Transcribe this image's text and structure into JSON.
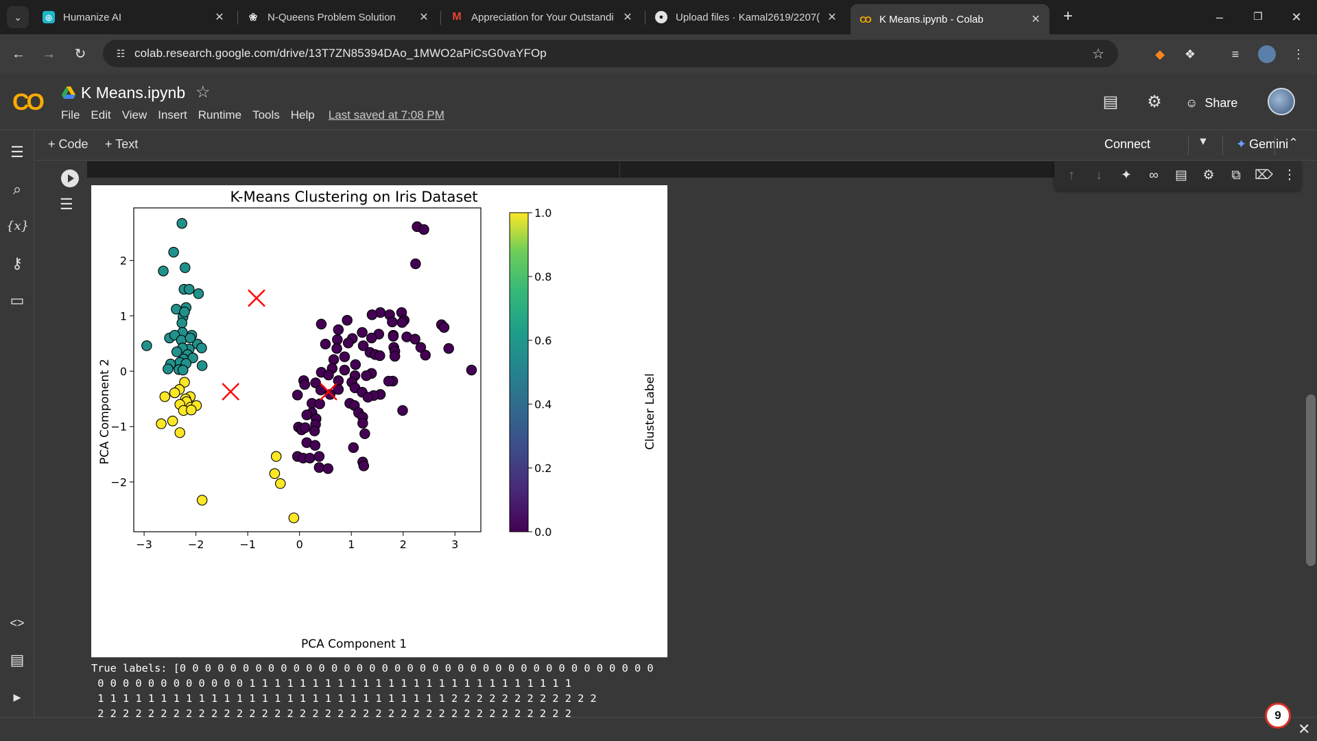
{
  "browser": {
    "tabs": [
      {
        "title": "Humanize AI",
        "icon": "humanize-ai-icon",
        "color": "#1fb6c9"
      },
      {
        "title": "N-Queens Problem Solution",
        "icon": "openai-icon",
        "color": "#e3e3e3"
      },
      {
        "title": "Appreciation for Your Outstandi",
        "icon": "gmail-icon",
        "color": "#ea4335"
      },
      {
        "title": "Upload files · Kamal2619/2207(",
        "icon": "github-icon",
        "color": "#e3e3e3"
      },
      {
        "title": "K Means.ipynb - Colab",
        "icon": "colab-icon",
        "color": "#f9ab00"
      }
    ],
    "url": "colab.research.google.com/drive/13T7ZN85394DAo_1MWO2aPiCsG0vaYFOp"
  },
  "colab": {
    "logo": "CO",
    "notebook_title": "K Means.ipynb",
    "menu": [
      "File",
      "Edit",
      "View",
      "Insert",
      "Runtime",
      "Tools",
      "Help"
    ],
    "last_saved": "Last saved at 7:08 PM",
    "share_label": "Share",
    "toolbar": {
      "code_label": "Code",
      "text_label": "Text",
      "connect_label": "Connect",
      "gemini_label": "Gemini"
    }
  },
  "output": {
    "stdout": [
      "True labels: [0 0 0 0 0 0 0 0 0 0 0 0 0 0 0 0 0 0 0 0 0 0 0 0 0 0 0 0 0 0 0 0 0 0 0 0 0 0",
      " 0 0 0 0 0 0 0 0 0 0 0 0 1 1 1 1 1 1 1 1 1 1 1 1 1 1 1 1 1 1 1 1 1 1 1 1 1 1",
      " 1 1 1 1 1 1 1 1 1 1 1 1 1 1 1 1 1 1 1 1 1 1 1 1 1 1 1 1 2 2 2 2 2 2 2 2 2 2 2 2",
      " 2 2 2 2 2 2 2 2 2 2 2 2 2 2 2 2 2 2 2 2 2 2 2 2 2 2 2 2 2 2 2 2 2 2 2 2 2 2"
    ]
  },
  "notification_count": "9",
  "chart_data": {
    "type": "scatter",
    "title": "K-Means Clustering on Iris Dataset",
    "xlabel": "PCA Component 1",
    "ylabel": "PCA Component 2",
    "xlim": [
      -3.2,
      3.5
    ],
    "ylim": [
      -2.9,
      2.95
    ],
    "xticks": [
      -3,
      -2,
      -1,
      0,
      1,
      2,
      3
    ],
    "xtick_labels": [
      "−3",
      "−2",
      "−1",
      "0",
      "1",
      "2",
      "3"
    ],
    "yticks": [
      -2,
      -1,
      0,
      1,
      2
    ],
    "ytick_labels": [
      "−2",
      "−1",
      "0",
      "1",
      "2"
    ],
    "colorbar": {
      "label": "Cluster Label",
      "range": [
        0.0,
        1.0
      ],
      "ticks": [
        "0.0",
        "0.2",
        "0.4",
        "0.6",
        "0.8",
        "1.0"
      ],
      "colormap": "viridis"
    },
    "cluster_colors": {
      "0": "#440154",
      "0.5": "#21918c",
      "1": "#fde725"
    },
    "centroid_color": "#ff0000",
    "centroids": [
      [
        -0.83,
        1.32
      ],
      [
        -1.33,
        -0.37
      ],
      [
        0.56,
        -0.37
      ]
    ],
    "series": [
      {
        "cluster": 0.5,
        "points": [
          [
            -2.27,
            2.67
          ],
          [
            -2.43,
            2.15
          ],
          [
            -2.21,
            1.87
          ],
          [
            -2.63,
            1.81
          ],
          [
            -2.23,
            1.48
          ],
          [
            -2.13,
            1.48
          ],
          [
            -1.95,
            1.4
          ],
          [
            -2.38,
            1.12
          ],
          [
            -2.19,
            1.15
          ],
          [
            -2.25,
            0.98
          ],
          [
            -2.22,
            1.07
          ],
          [
            -2.27,
            0.87
          ],
          [
            -2.26,
            0.7
          ],
          [
            -2.51,
            0.6
          ],
          [
            -2.41,
            0.65
          ],
          [
            -2.08,
            0.65
          ],
          [
            -2.95,
            0.46
          ],
          [
            -2.28,
            0.56
          ],
          [
            -1.97,
            0.49
          ],
          [
            -1.89,
            0.42
          ],
          [
            -2.13,
            0.4
          ],
          [
            -2.26,
            0.42
          ],
          [
            -2.37,
            0.35
          ],
          [
            -2.16,
            0.3
          ],
          [
            -2.24,
            0.22
          ],
          [
            -2.06,
            0.24
          ],
          [
            -2.31,
            0.16
          ],
          [
            -2.49,
            0.13
          ],
          [
            -2.19,
            0.14
          ],
          [
            -2.33,
            0.03
          ],
          [
            -2.25,
            0.02
          ],
          [
            -2.54,
            0.04
          ],
          [
            -1.88,
            0.1
          ],
          [
            -2.11,
            0.6
          ]
        ]
      },
      {
        "cluster": 1,
        "points": [
          [
            -2.22,
            -0.2
          ],
          [
            -2.32,
            -0.33
          ],
          [
            -2.41,
            -0.39
          ],
          [
            -2.6,
            -0.46
          ],
          [
            -2.11,
            -0.46
          ],
          [
            -2.2,
            -0.5
          ],
          [
            -2.18,
            -0.55
          ],
          [
            -2.31,
            -0.6
          ],
          [
            -2.1,
            -0.65
          ],
          [
            -1.99,
            -0.62
          ],
          [
            -2.24,
            -0.71
          ],
          [
            -2.09,
            -0.7
          ],
          [
            -2.67,
            -0.95
          ],
          [
            -2.45,
            -0.9
          ],
          [
            -2.31,
            -1.11
          ],
          [
            -1.88,
            -2.33
          ],
          [
            -0.45,
            -1.54
          ],
          [
            -0.48,
            -1.85
          ],
          [
            -0.37,
            -2.03
          ],
          [
            -0.11,
            -2.65
          ]
        ]
      },
      {
        "cluster": 0,
        "points": [
          [
            2.27,
            2.61
          ],
          [
            2.4,
            2.56
          ],
          [
            2.24,
            1.94
          ],
          [
            1.56,
            1.06
          ],
          [
            1.74,
            1.02
          ],
          [
            1.97,
            1.06
          ],
          [
            1.4,
            1.02
          ],
          [
            1.79,
            0.89
          ],
          [
            2.02,
            0.92
          ],
          [
            1.98,
            0.88
          ],
          [
            0.92,
            0.92
          ],
          [
            0.42,
            0.85
          ],
          [
            2.74,
            0.84
          ],
          [
            2.79,
            0.79
          ],
          [
            0.75,
            0.75
          ],
          [
            1.21,
            0.7
          ],
          [
            1.53,
            0.67
          ],
          [
            1.81,
            0.65
          ],
          [
            2.07,
            0.62
          ],
          [
            1.02,
            0.59
          ],
          [
            1.81,
            0.63
          ],
          [
            2.23,
            0.58
          ],
          [
            0.73,
            0.57
          ],
          [
            0.94,
            0.51
          ],
          [
            1.39,
            0.6
          ],
          [
            1.23,
            0.46
          ],
          [
            2.34,
            0.43
          ],
          [
            0.5,
            0.49
          ],
          [
            1.82,
            0.43
          ],
          [
            0.72,
            0.41
          ],
          [
            1.36,
            0.34
          ],
          [
            2.88,
            0.41
          ],
          [
            1.84,
            0.36
          ],
          [
            1.46,
            0.3
          ],
          [
            2.43,
            0.29
          ],
          [
            1.84,
            0.27
          ],
          [
            0.87,
            0.26
          ],
          [
            0.66,
            0.21
          ],
          [
            1.55,
            0.28
          ],
          [
            3.32,
            0.02
          ],
          [
            0.63,
            0.05
          ],
          [
            1.08,
            0.12
          ],
          [
            0.87,
            0.02
          ],
          [
            1.39,
            -0.04
          ],
          [
            0.42,
            -0.02
          ],
          [
            0.56,
            -0.07
          ],
          [
            1.29,
            -0.08
          ],
          [
            1.07,
            -0.08
          ],
          [
            0.08,
            -0.17
          ],
          [
            1.8,
            -0.18
          ],
          [
            0.1,
            -0.24
          ],
          [
            1.72,
            -0.18
          ],
          [
            0.31,
            -0.21
          ],
          [
            0.75,
            -0.17
          ],
          [
            1.01,
            -0.2
          ],
          [
            0.41,
            -0.34
          ],
          [
            1.07,
            -0.3
          ],
          [
            1.21,
            -0.38
          ],
          [
            0.59,
            -0.42
          ],
          [
            0.75,
            -0.33
          ],
          [
            -0.04,
            -0.43
          ],
          [
            1.56,
            -0.42
          ],
          [
            1.43,
            -0.44
          ],
          [
            1.32,
            -0.47
          ],
          [
            0.24,
            -0.58
          ],
          [
            0.39,
            -0.59
          ],
          [
            0.97,
            -0.58
          ],
          [
            1.06,
            -0.62
          ],
          [
            1.99,
            -0.71
          ],
          [
            1.14,
            -0.75
          ],
          [
            0.24,
            -0.75
          ],
          [
            0.14,
            -0.79
          ],
          [
            1.22,
            -0.83
          ],
          [
            0.32,
            -0.86
          ],
          [
            1.22,
            -0.94
          ],
          [
            0.31,
            -0.96
          ],
          [
            -0.02,
            -1.01
          ],
          [
            0.04,
            -1.06
          ],
          [
            0.11,
            -1.02
          ],
          [
            1.26,
            -1.13
          ],
          [
            0.29,
            -1.08
          ],
          [
            0.14,
            -1.29
          ],
          [
            1.04,
            -1.38
          ],
          [
            0.3,
            -1.34
          ],
          [
            -0.04,
            -1.54
          ],
          [
            0.07,
            -1.57
          ],
          [
            0.2,
            -1.57
          ],
          [
            0.38,
            -1.54
          ],
          [
            1.22,
            -1.64
          ],
          [
            1.24,
            -1.71
          ],
          [
            0.38,
            -1.74
          ],
          [
            0.55,
            -1.76
          ]
        ]
      }
    ]
  }
}
